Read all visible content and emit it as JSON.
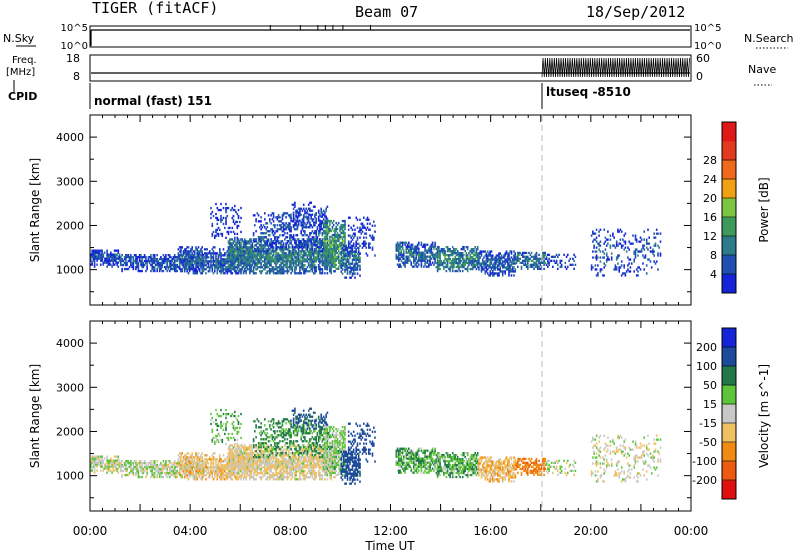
{
  "header": {
    "radar": "TIGER (fitACF)",
    "beam": "Beam 07",
    "date": "18/Sep/2012"
  },
  "chart_data": {
    "type": "heatmap",
    "time_axis": {
      "label": "Time UT",
      "range_hours": [
        0,
        24
      ],
      "ticks": [
        {
          "t": 0,
          "label": "00:00"
        },
        {
          "t": 4,
          "label": "04:00"
        },
        {
          "t": 8,
          "label": "08:00"
        },
        {
          "t": 12,
          "label": "12:00"
        },
        {
          "t": 16,
          "label": "16:00"
        },
        {
          "t": 20,
          "label": "20:00"
        },
        {
          "t": 24,
          "label": "00:00"
        }
      ],
      "marker_hour": 18.05
    },
    "params_panel": {
      "nsky": {
        "label": "N.Sky",
        "ticks": [
          "10^5",
          "10^0"
        ]
      },
      "nsearch": {
        "label": "N.Search",
        "ticks": [
          "10^5",
          "10^0"
        ]
      },
      "freq": {
        "label_line1": "Freq.",
        "label_line2": "[MHz]",
        "ticks": [
          18,
          8
        ]
      },
      "nave": {
        "label": "Nave",
        "ticks": [
          60,
          0
        ]
      },
      "cpid": {
        "label": "CPID",
        "modes": [
          {
            "start_hour": 0,
            "name": "normal (fast) 151"
          },
          {
            "start_hour": 18.05,
            "name": "ltuseq -8510"
          }
        ]
      }
    },
    "range_axis": {
      "label": "Slant Range [km]",
      "range": [
        200,
        4500
      ],
      "ticks": [
        1000,
        2000,
        3000,
        4000
      ]
    },
    "power": {
      "label": "Power [dB]",
      "ticks": [
        4,
        8,
        12,
        16,
        20,
        24,
        28
      ],
      "colors": [
        "#1424d8",
        "#1f4fb3",
        "#2d7a8c",
        "#3e9a5c",
        "#7cc542",
        "#f0a012",
        "#ef6a1a",
        "#e23a1f",
        "#e01818"
      ]
    },
    "velocity": {
      "label_line": "Velocity [m s^-1]",
      "ticks": [
        200,
        100,
        50,
        15,
        -15,
        -50,
        -100,
        -200
      ],
      "colors": [
        "#1424d8",
        "#1d4a9a",
        "#23784a",
        "#5ec43a",
        "#c8c8c8",
        "#f0c060",
        "#f08a10",
        "#ee5a10",
        "#e01010"
      ]
    },
    "echo_regions": [
      {
        "t0": 0.0,
        "t1": 1.2,
        "r0": 1050,
        "r1": 1450,
        "power": 6,
        "velocity": 0,
        "density": 0.8
      },
      {
        "t0": 1.2,
        "t1": 4.5,
        "r0": 950,
        "r1": 1350,
        "power": 7,
        "velocity": 10,
        "density": 0.75
      },
      {
        "t0": 3.5,
        "t1": 6.5,
        "r0": 900,
        "r1": 1500,
        "power": 8,
        "velocity": -30,
        "density": 0.8
      },
      {
        "t0": 5.5,
        "t1": 9.8,
        "r0": 900,
        "r1": 1700,
        "power": 11,
        "velocity": -15,
        "density": 0.85
      },
      {
        "t0": 6.5,
        "t1": 9.5,
        "r0": 1400,
        "r1": 2300,
        "power": 6,
        "velocity": 60,
        "density": 0.4
      },
      {
        "t0": 8.0,
        "t1": 9.5,
        "r0": 2000,
        "r1": 2500,
        "power": 5,
        "velocity": 120,
        "density": 0.35
      },
      {
        "t0": 4.8,
        "t1": 6.0,
        "r0": 1700,
        "r1": 2500,
        "power": 4,
        "velocity": 40,
        "density": 0.25
      },
      {
        "t0": 9.3,
        "t1": 10.2,
        "r0": 1000,
        "r1": 2100,
        "power": 14,
        "velocity": 20,
        "density": 0.75
      },
      {
        "t0": 10.0,
        "t1": 10.8,
        "r0": 800,
        "r1": 1600,
        "power": 9,
        "velocity": 130,
        "density": 0.7
      },
      {
        "t0": 10.3,
        "t1": 11.4,
        "r0": 1300,
        "r1": 2200,
        "power": 4,
        "velocity": 150,
        "density": 0.3
      },
      {
        "t0": 12.2,
        "t1": 13.8,
        "r0": 1050,
        "r1": 1600,
        "power": 9,
        "velocity": 45,
        "density": 0.8
      },
      {
        "t0": 13.8,
        "t1": 15.5,
        "r0": 950,
        "r1": 1500,
        "power": 12,
        "velocity": 40,
        "density": 0.8
      },
      {
        "t0": 15.5,
        "t1": 17.0,
        "r0": 850,
        "r1": 1400,
        "power": 8,
        "velocity": -40,
        "density": 0.75
      },
      {
        "t0": 17.0,
        "t1": 18.2,
        "r0": 1000,
        "r1": 1400,
        "power": 10,
        "velocity": -80,
        "density": 0.7
      },
      {
        "t0": 18.2,
        "t1": 19.4,
        "r0": 1000,
        "r1": 1350,
        "power": 6,
        "velocity": 5,
        "density": 0.25
      },
      {
        "t0": 20.0,
        "t1": 22.8,
        "r0": 850,
        "r1": 1900,
        "power": 6,
        "velocity": 0,
        "density": 0.22
      }
    ]
  }
}
